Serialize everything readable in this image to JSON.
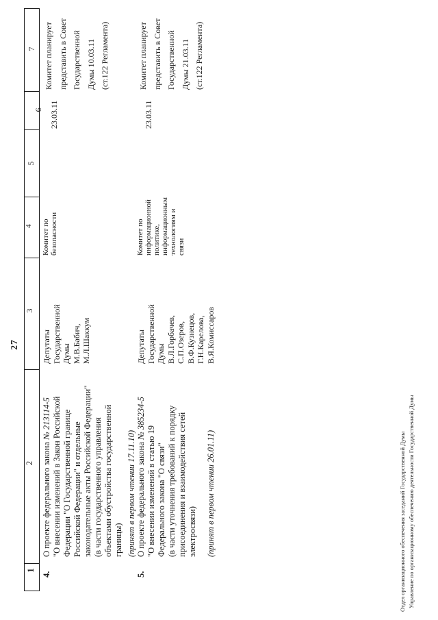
{
  "page": {
    "number": "27",
    "footer_line1": "Отдел организационного обеспечения заседаний Государственной Думы",
    "footer_line2": "Управление по организационному обеспечению деятельности Государственной Думы"
  },
  "table": {
    "headers": [
      "1",
      "2",
      "3",
      "4",
      "5",
      "6",
      "7"
    ],
    "rows": [
      {
        "num": "4.",
        "bill_prefix": "О проекте федерального закона ",
        "bill_number": "№ 213114-5",
        "bill_body": "\n\"О внесении изменений в Закон Российской\nФедерации \"О Государственной границе\nРоссийской Федерации\" и отдельные\nзаконодательные акты Российской Федерации\"\n(в части государственного управления\nобъектами обустройства государственной\nграницы)",
        "bill_note": "(принят в первом чтении 17.11.10)",
        "initiator": "Депутаты\nГосударственной\nДумы\nМ.В.Бабич,\nМ.Л.Шаккум",
        "committee": "Комитет по\nбезопасности",
        "col5": "",
        "date": "23.03.11",
        "plan": "Комитет планирует\nпредставить в Совет\nГосударственной\nДумы 10.03.11\n(ст.122 Регламента)"
      },
      {
        "num": "5.",
        "bill_prefix": "О проекте федерального закона ",
        "bill_number": "№ 385234-5",
        "bill_body": "\n\"О внесении изменений в статью 19\nФедерального закона \"О связи\"\n(в части уточнения требований к порядку\nприсоединения и взаимодействия сетей\nэлектросвязи)",
        "bill_note": "(принят в первом чтении 26.01.11)",
        "initiator": "Депутаты\nГосударственной\nДумы\nВ.Л.Горбачев,\nС.П.Озеров,\nВ.Ф.Кузнецов,\nГ.Н.Карелова,\nВ.Я.Комиссаров",
        "committee": "Комитет по\nинформационной\nполитике,\nинформационным\nтехнологиям и\nсвязи",
        "col5": "",
        "date": "23.03.11",
        "plan": "Комитет планирует\nпредставить в Совет\nГосударственной\nДумы 21.03.11\n(ст.122 Регламента)"
      }
    ]
  }
}
